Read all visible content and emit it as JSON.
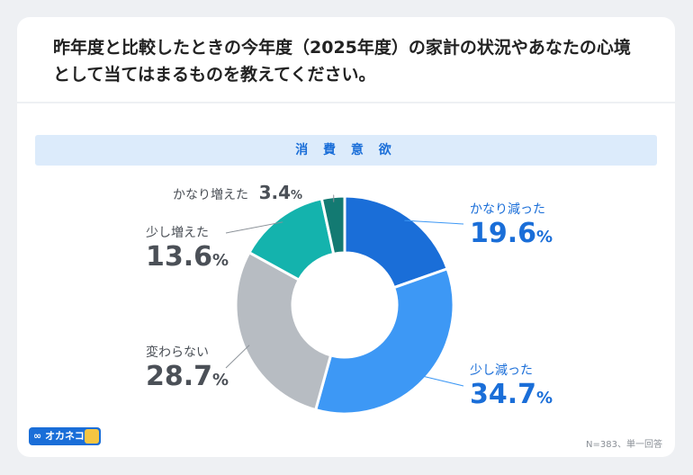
{
  "question": "昨年度と比較したときの今年度（2025年度）の家計の状況やあなたの心境として当てはまるものを教えてください。",
  "banner": "消 費 意 欲",
  "note": "N=383、単一回答",
  "logo_text": "オカネコ",
  "chart_data": {
    "type": "pie",
    "donut": true,
    "title": "消費意欲",
    "slices": [
      {
        "label": "かなり減った",
        "value": 19.6,
        "display": "19.6",
        "color": "#1a6ed8",
        "text_color": "#1a6ed8"
      },
      {
        "label": "少し減った",
        "value": 34.7,
        "display": "34.7",
        "color": "#3d98f5",
        "text_color": "#1a6ed8"
      },
      {
        "label": "変わらない",
        "value": 28.7,
        "display": "28.7",
        "color": "#b7bcc2",
        "text_color": "#4b5057"
      },
      {
        "label": "少し増えた",
        "value": 13.6,
        "display": "13.6",
        "color": "#14b3ad",
        "text_color": "#4b5057"
      },
      {
        "label": "かなり増えた",
        "value": 3.4,
        "display": "3.4",
        "color": "#137a72",
        "text_color": "#4b5057"
      }
    ],
    "unit": "%"
  }
}
